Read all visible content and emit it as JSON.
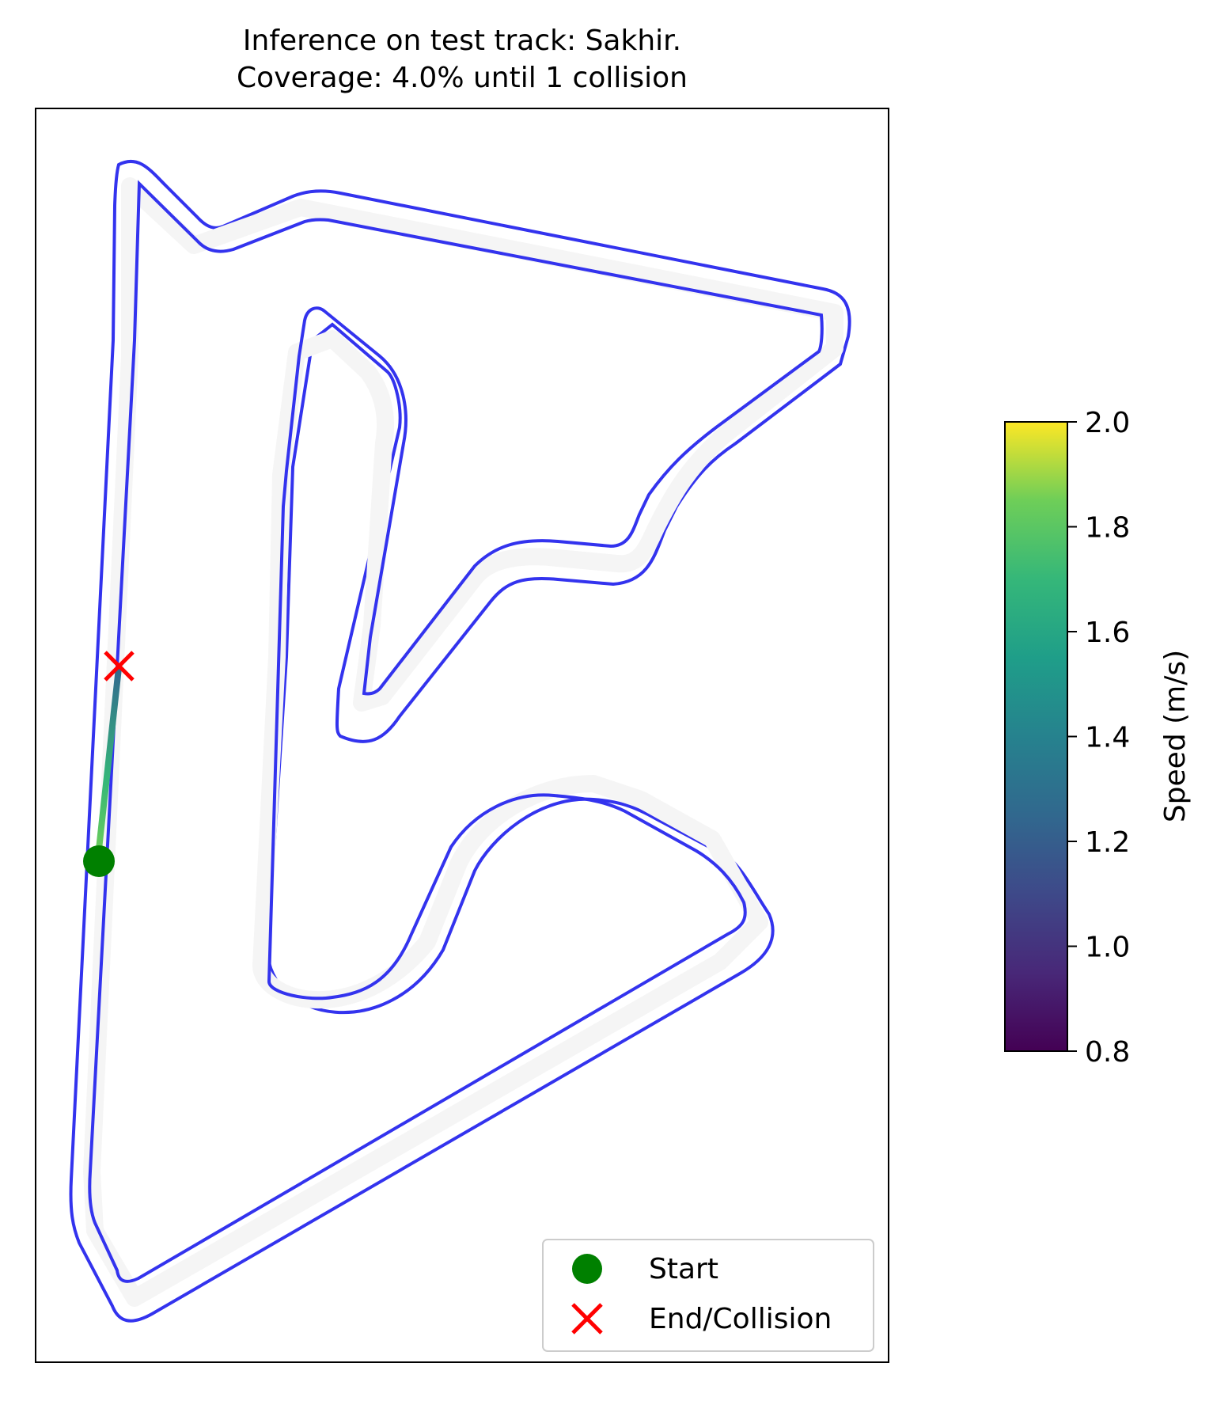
{
  "chart_data": {
    "type": "line",
    "title_line1": "Inference on test track: Sakhir.",
    "title_line2": "Coverage: 4.0% until 1 collision",
    "legend": {
      "placement": "bottom-right",
      "entries": [
        {
          "label": "Start",
          "marker": "circle",
          "color": "#008000"
        },
        {
          "label": "End/Collision",
          "marker": "x",
          "color": "#ff0000"
        }
      ]
    },
    "colorbar": {
      "label": "Speed (m/s)",
      "colormap": "viridis",
      "min": 0.8,
      "max": 2.0,
      "ticks": [
        "0.8",
        "1.0",
        "1.2",
        "1.4",
        "1.6",
        "1.8",
        "2.0"
      ]
    },
    "colors": {
      "track_boundary": "#3333ee",
      "track_surface": "#f5f5f5",
      "start_marker": "#008000",
      "end_marker": "#ff0000"
    }
  }
}
